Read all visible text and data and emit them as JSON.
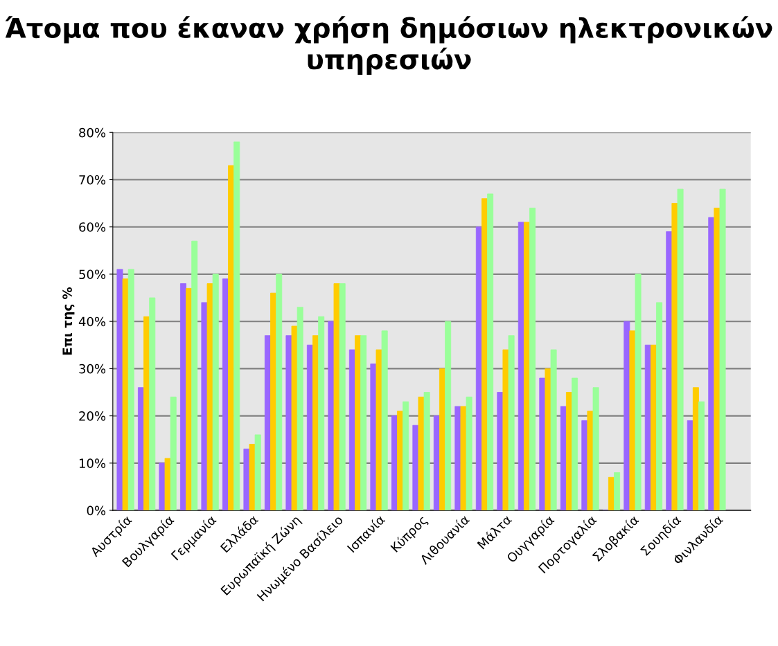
{
  "chart_data": {
    "type": "bar",
    "title": "Άτομα που έκαναν χρήση δημόσιων ηλεκτρονικών υπηρεσιών",
    "ylabel": "Επι της %",
    "categories": [
      "Αυστρία",
      null,
      "Βουλγαρία",
      null,
      "Γερμανία",
      null,
      "Ελλάδα",
      null,
      "Ευρωπαϊκή Ζώνη",
      null,
      "Ηνωμένο Βασίλειο",
      null,
      "Ισπανία",
      null,
      "Κύπρος",
      null,
      "Λιθουανία",
      null,
      "Μάλτα",
      null,
      "Ουγγαρία",
      null,
      "Πορτογαλία",
      null,
      "Σλοβακία",
      null,
      "Σουηδία",
      null,
      "Φινλανδία"
    ],
    "series": [
      {
        "color": "#9966ff",
        "values": [
          51,
          26,
          10,
          48,
          44,
          49,
          13,
          37,
          37,
          35,
          40,
          34,
          31,
          20,
          18,
          20,
          22,
          60,
          25,
          61,
          28,
          22,
          19,
          0,
          40,
          35,
          59,
          19,
          62
        ]
      },
      {
        "color": "#ffcc00",
        "values": [
          49,
          41,
          11,
          47,
          48,
          73,
          14,
          46,
          39,
          37,
          48,
          37,
          34,
          21,
          24,
          30,
          22,
          66,
          34,
          61,
          30,
          25,
          21,
          7,
          38,
          35,
          65,
          26,
          64
        ]
      },
      {
        "color": "#99ff99",
        "values": [
          51,
          45,
          24,
          57,
          50,
          78,
          16,
          50,
          43,
          41,
          48,
          37,
          38,
          23,
          25,
          40,
          24,
          67,
          37,
          64,
          34,
          28,
          26,
          8,
          50,
          44,
          68,
          23,
          68
        ]
      }
    ],
    "ylim": [
      0,
      80
    ],
    "yticks": [
      {
        "value": 0,
        "label": "0%"
      },
      {
        "value": 10,
        "label": "10%"
      },
      {
        "value": 20,
        "label": "20%"
      },
      {
        "value": 30,
        "label": "30%"
      },
      {
        "value": 40,
        "label": "40%"
      },
      {
        "value": 50,
        "label": "50%"
      },
      {
        "value": 60,
        "label": "60%"
      },
      {
        "value": 70,
        "label": "70%"
      },
      {
        "value": 80,
        "label": "80%"
      }
    ],
    "grid": "y",
    "legend": false
  }
}
